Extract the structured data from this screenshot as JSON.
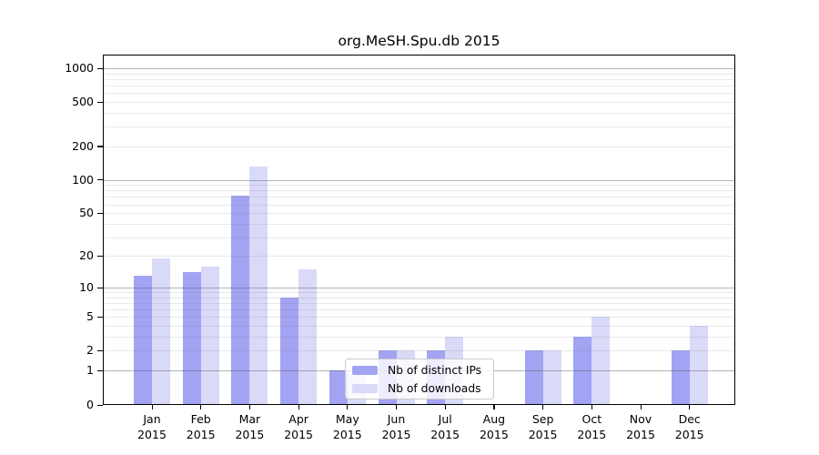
{
  "title": "org.MeSH.Spu.db 2015",
  "chart_data": {
    "type": "bar",
    "title": "org.MeSH.Spu.db 2015",
    "months": [
      "Jan",
      "Feb",
      "Mar",
      "Apr",
      "May",
      "Jun",
      "Jul",
      "Aug",
      "Sep",
      "Oct",
      "Nov",
      "Dec"
    ],
    "year": "2015",
    "series": [
      {
        "name": "Nb of distinct IPs",
        "color": "#a3a3f3",
        "values": [
          13,
          14,
          72,
          8,
          1,
          2,
          2,
          0,
          2,
          3,
          0,
          2
        ]
      },
      {
        "name": "Nb of downloads",
        "color": "#d9d9f8",
        "values": [
          19,
          16,
          133,
          15,
          1,
          2,
          3,
          0,
          2,
          5,
          0,
          4
        ]
      }
    ],
    "y_scale": "log10(1+x)",
    "y_ticks": [
      0,
      1,
      2,
      5,
      10,
      20,
      50,
      100,
      200,
      500,
      1000
    ],
    "major_gridlines": [
      1,
      10,
      100,
      1000
    ],
    "minor_gridlines": [
      2,
      3,
      4,
      5,
      6,
      7,
      8,
      9,
      20,
      30,
      40,
      50,
      60,
      70,
      80,
      90,
      200,
      300,
      400,
      500,
      600,
      700,
      800,
      900
    ],
    "ylim": [
      0,
      1000
    ],
    "grid": true,
    "legend_position": "inside-bottom-center",
    "background": "#ffffff"
  },
  "legend": {
    "items": [
      {
        "label": "Nb of distinct IPs"
      },
      {
        "label": "Nb of downloads"
      }
    ]
  }
}
